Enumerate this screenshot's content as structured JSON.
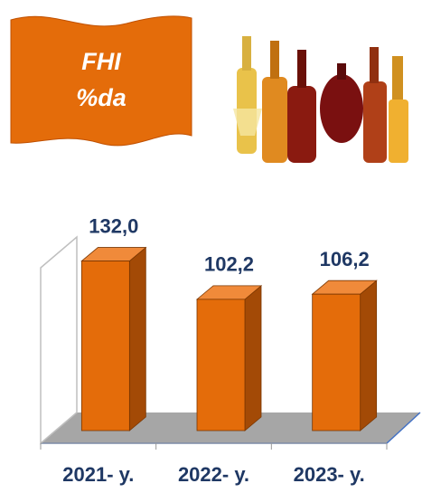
{
  "chart_data": {
    "type": "bar3d",
    "title_lines": [
      "FHI",
      "%da"
    ],
    "categories": [
      "2021- y.",
      "2022- y.",
      "2023- y."
    ],
    "values": [
      132.0,
      102.2,
      106.2
    ],
    "value_labels": [
      "132,0",
      "102,2",
      "106,2"
    ],
    "color": "#e46c0a",
    "ylim": [
      0,
      150
    ]
  }
}
